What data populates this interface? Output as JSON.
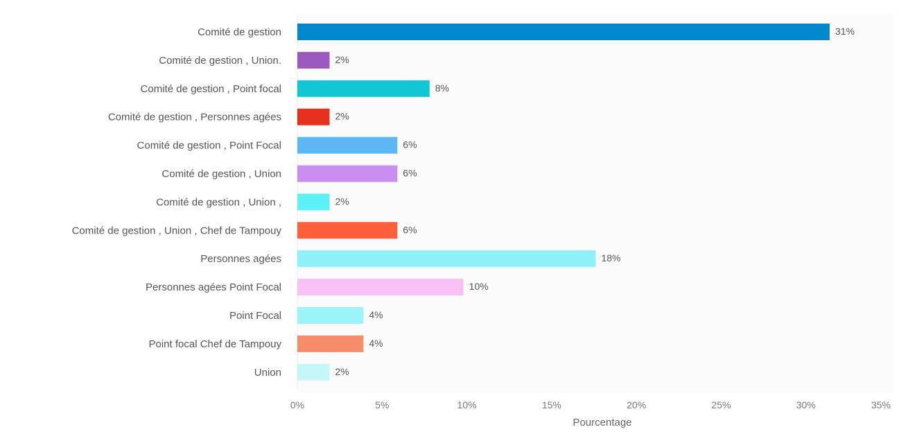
{
  "chart_data": {
    "type": "bar",
    "orientation": "horizontal",
    "categories": [
      "Comité de gestion",
      "Comité de gestion , Union.",
      "Comité de gestion , Point focal",
      "Comité de gestion , Personnes agées",
      "Comité de gestion , Point Focal",
      "Comité de gestion , Union",
      "Comité de gestion , Union ,",
      "Comité de gestion , Union , Chef de Tampouy",
      "Personnes agées",
      "Personnes agées Point Focal",
      "Point Focal",
      "Point focal Chef de Tampouy",
      "Union"
    ],
    "values": [
      31.4,
      1.9,
      7.8,
      1.9,
      5.9,
      5.9,
      1.9,
      5.9,
      17.6,
      9.8,
      3.9,
      3.9,
      1.9
    ],
    "value_labels": [
      "31%",
      "2%",
      "8%",
      "2%",
      "6%",
      "6%",
      "2%",
      "6%",
      "18%",
      "10%",
      "4%",
      "4%",
      "2%"
    ],
    "colors": [
      "#0088cc",
      "#9b59c0",
      "#12c6d6",
      "#e8301f",
      "#5bb8f5",
      "#c98ef0",
      "#5cf2f5",
      "#ff5e3a",
      "#8ef0f8",
      "#f8c0f5",
      "#9af4f8",
      "#f58c6a",
      "#c6f6f8"
    ],
    "title": "",
    "xlabel": "Pourcentage",
    "ylabel": "",
    "xlim": [
      0,
      35
    ],
    "xticks": [
      0,
      5,
      10,
      15,
      20,
      25,
      30,
      35
    ],
    "xtick_labels": [
      "0%",
      "5%",
      "10%",
      "15%",
      "20%",
      "25%",
      "30%",
      "35%"
    ],
    "grid": false,
    "legend": "none"
  }
}
